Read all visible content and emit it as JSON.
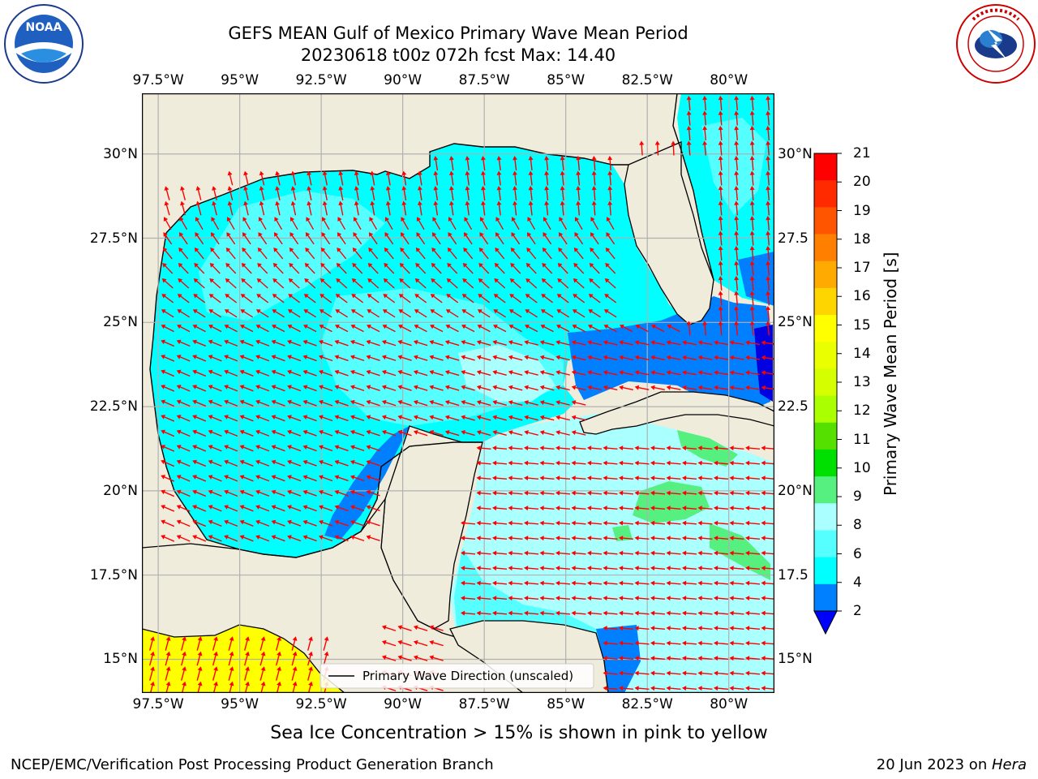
{
  "header": {
    "title_line1": "GEFS MEAN Gulf of Mexico Primary Wave Mean Period",
    "title_line2": "20230618 t00z 072h fcst   Max: 14.40",
    "noara_logo_text": "NOAA",
    "noaa_ring_text": "NATIONAL OCEANIC AND ATMOSPHERIC ADMINISTRATION · U.S. DEPARTMENT OF COMMERCE",
    "nws_ring_text": "NATIONAL WEATHER SERVICE"
  },
  "map": {
    "lon_ticks": [
      "97.5°W",
      "95°W",
      "92.5°W",
      "90°W",
      "87.5°W",
      "85°W",
      "82.5°W",
      "80°W"
    ],
    "lon_values": [
      -97.5,
      -95,
      -92.5,
      -90,
      -87.5,
      -85,
      -82.5,
      -80
    ],
    "lat_ticks_left": [
      "30°N",
      "27.5°N",
      "25°N",
      "22.5°N",
      "20°N",
      "17.5°N",
      "15°N"
    ],
    "lat_ticks_right": [
      "30°N",
      "27.5",
      "25°N",
      "22.5",
      "20°N",
      "17.5",
      "15°N"
    ],
    "lat_values": [
      30,
      27.5,
      25,
      22.5,
      20,
      17.5,
      15
    ],
    "extent": {
      "lon": [
        -98,
        -78.6
      ],
      "lat": [
        14,
        31.8
      ]
    },
    "legend_label": "Primary Wave Direction (unscaled)",
    "colors": {
      "land": "#efecdc",
      "arrow": "#ff0000",
      "grid": "#b0b0b0"
    }
  },
  "colorbar": {
    "title": "Primary Wave Mean Period [s]",
    "labels": [
      "21",
      "20",
      "19",
      "18",
      "17",
      "16",
      "15",
      "14",
      "13",
      "12",
      "11",
      "10",
      "9",
      "8",
      "6",
      "4",
      "2"
    ],
    "colors_top_to_bottom": [
      "#ff0000",
      "#ff2a00",
      "#ff5500",
      "#ff8000",
      "#ffaa00",
      "#ffd500",
      "#ffff00",
      "#eaff00",
      "#d5ff00",
      "#aaff00",
      "#55e000",
      "#00e000",
      "#55f080",
      "#aaffff",
      "#55ffff",
      "#00ffff",
      "#0080ff",
      "#0000ff"
    ]
  },
  "caption": "Sea Ice Concentration > 15% is shown in pink to yellow",
  "footer": {
    "left": "NCEP/EMC/Verification Post Processing Product Generation Branch",
    "date": "20 Jun 2023 on ",
    "machine": "Hera"
  }
}
